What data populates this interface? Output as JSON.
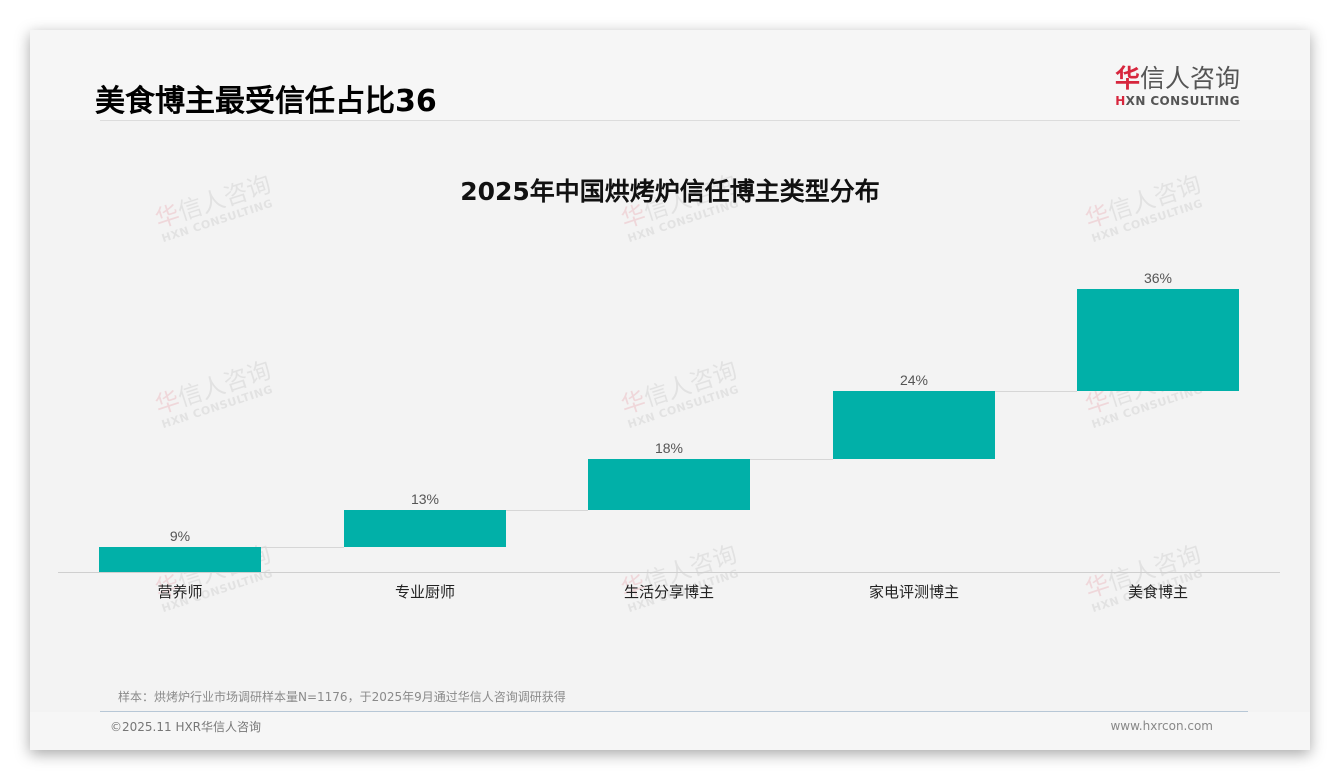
{
  "header": {
    "title": "美食博主最受信任占比36",
    "logo": {
      "cn_brand_first": "华",
      "cn_brand_rest": "信人咨询",
      "en_first": "H",
      "en_rest": "XN CONSULTING"
    }
  },
  "watermark": {
    "cn_first": "华",
    "cn_rest": "信人咨询",
    "en": "HXN CONSULTING"
  },
  "chart_data": {
    "type": "bar",
    "subtype": "waterfall",
    "title": "2025年中国烘烤炉信任博主类型分布",
    "xlabel": "",
    "ylabel": "",
    "categories": [
      "营养师",
      "专业厨师",
      "生活分享博主",
      "家电评测博主",
      "美食博主"
    ],
    "values": [
      9,
      13,
      18,
      24,
      36
    ],
    "labels": [
      "9%",
      "13%",
      "18%",
      "24%",
      "36%"
    ],
    "unit": "%",
    "ylim": [
      0,
      100
    ],
    "grid": false,
    "legend": null,
    "bar_color": "#01b0a8"
  },
  "footer": {
    "note": "样本：烘烤炉行业市场调研样本量N=1176，于2025年9月通过华信人咨询调研获得",
    "copyright": "©2025.11 HXR华信人咨询",
    "website": "www.hxrcon.com"
  }
}
